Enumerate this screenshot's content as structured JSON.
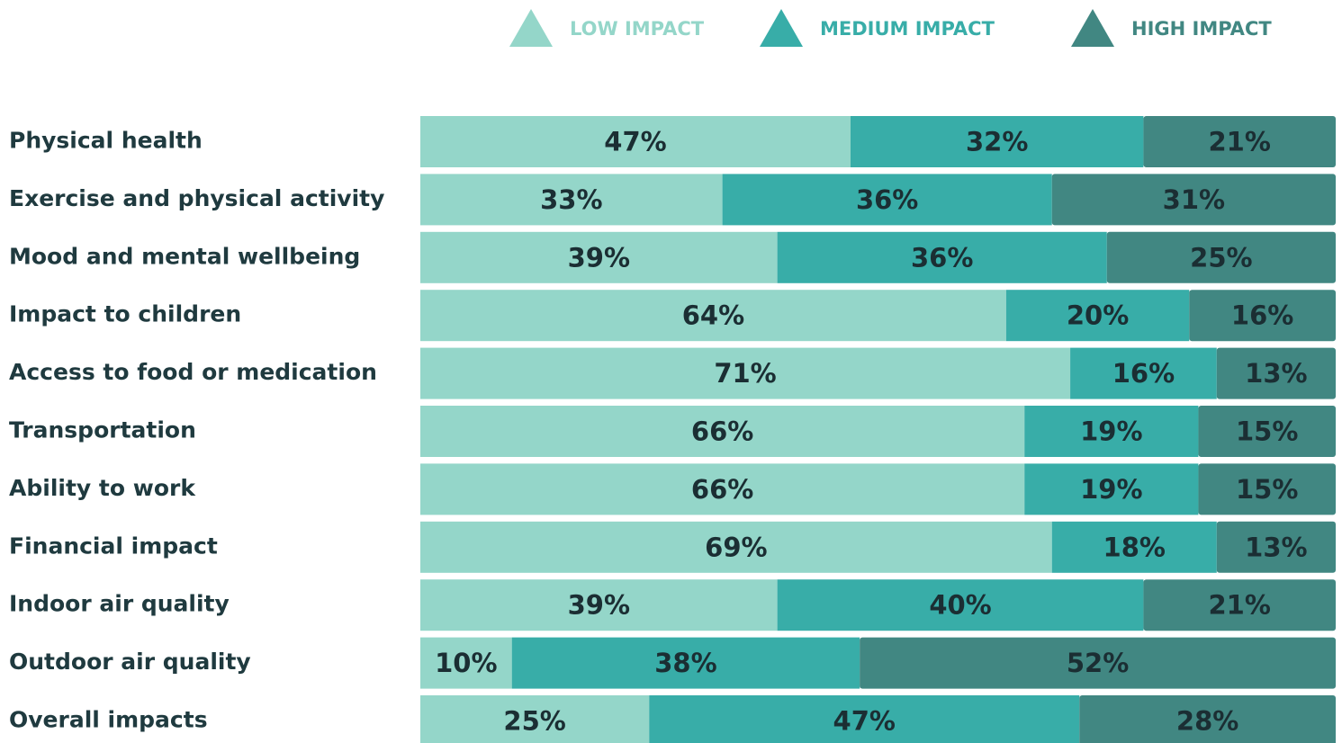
{
  "chart_data": {
    "type": "stacked-bar",
    "orientation": "horizontal",
    "categories": [
      "Physical health",
      "Exercise and physical activity",
      "Mood and mental wellbeing",
      "Impact to children",
      "Access to food or medication",
      "Transportation",
      "Ability to work",
      "Financial impact",
      "Indoor air quality",
      "Outdoor air quality",
      "Overall impacts"
    ],
    "xlim": [
      0,
      100
    ],
    "series": [
      {
        "name": "LOW IMPACT",
        "color": "#94d6c9",
        "values": [
          47,
          33,
          39,
          64,
          71,
          66,
          66,
          69,
          39,
          10,
          25
        ],
        "value_labels": [
          "47%",
          "33%",
          "39%",
          "64%",
          "71%",
          "66%",
          "66%",
          "69%",
          "39%",
          "10%",
          "25%"
        ]
      },
      {
        "name": "MEDIUM IMPACT",
        "color": "#38ada8",
        "values": [
          32,
          36,
          36,
          20,
          16,
          19,
          19,
          18,
          40,
          38,
          47
        ],
        "value_labels": [
          "32%",
          "36%",
          "36%",
          "20%",
          "16%",
          "19%",
          "19%",
          "18%",
          "40%",
          "38%",
          "47%"
        ]
      },
      {
        "name": "HIGH IMPACT",
        "color": "#418782",
        "values": [
          21,
          31,
          25,
          16,
          13,
          15,
          15,
          13,
          21,
          52,
          28
        ],
        "value_labels": [
          "21%",
          "31%",
          "25%",
          "16%",
          "13%",
          "15%",
          "15%",
          "13%",
          "21%",
          "52%",
          "28%"
        ]
      }
    ],
    "legend": "top"
  }
}
